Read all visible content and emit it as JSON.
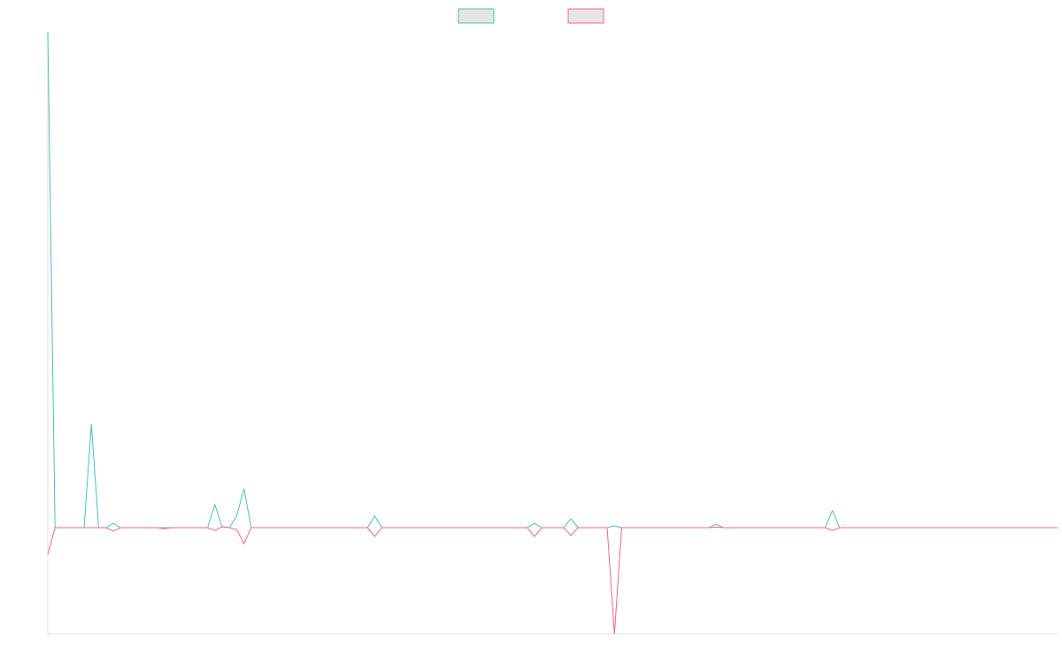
{
  "chart_data": {
    "type": "line",
    "series": [
      {
        "color": "#4bc0c0",
        "values": [
          14,
          0,
          0,
          0,
          0,
          0,
          2.93,
          0,
          0,
          0.12,
          0,
          0,
          0,
          0,
          0,
          0,
          0,
          0,
          0,
          0,
          0,
          0,
          0,
          0.65,
          0.02,
          0,
          0.33,
          1.1,
          0,
          0,
          0,
          0,
          0,
          0,
          0,
          0,
          0,
          0,
          0,
          0,
          0,
          0,
          0,
          0,
          0,
          0.33,
          0,
          0,
          0,
          0,
          0,
          0,
          0,
          0,
          0,
          0,
          0,
          0,
          0,
          0,
          0,
          0,
          0,
          0,
          0,
          0,
          0,
          0.12,
          0,
          0,
          0,
          0,
          0.25,
          0,
          0,
          0,
          0,
          0,
          0.05,
          0,
          0,
          0,
          0,
          0,
          0,
          0,
          0,
          0,
          0,
          0,
          0,
          0,
          0.1,
          0,
          0,
          0,
          0,
          0,
          0,
          0,
          0,
          0,
          0,
          0,
          0,
          0,
          0,
          0,
          0.48,
          0,
          0,
          0,
          0,
          0,
          0,
          0,
          0,
          0,
          0,
          0,
          0,
          0,
          0,
          0,
          0,
          0,
          0,
          0,
          0,
          0,
          0,
          0,
          0,
          0,
          0,
          0,
          0,
          0,
          0,
          0
        ]
      },
      {
        "color": "#ff6384",
        "values": [
          -0.75,
          0,
          0,
          0,
          0,
          0,
          0,
          0,
          0,
          -0.1,
          0,
          0,
          0,
          0,
          0,
          0,
          -0.03,
          0,
          0,
          0,
          0,
          0,
          0,
          -0.08,
          0.03,
          0,
          -0.05,
          -0.45,
          0,
          0,
          0,
          0,
          0,
          0,
          0,
          0,
          0,
          0,
          0,
          0,
          0,
          0,
          0,
          0,
          0,
          -0.25,
          0,
          0,
          0,
          0,
          0,
          0,
          0,
          0,
          0,
          0,
          0,
          0,
          0,
          0,
          0,
          0,
          0,
          0,
          0,
          0,
          0,
          -0.25,
          0,
          0,
          0,
          0,
          -0.22,
          0,
          0,
          0,
          0,
          0,
          -3,
          0,
          0,
          0,
          0,
          0,
          0,
          0,
          0,
          0,
          0,
          0,
          0,
          0,
          0.02,
          0,
          0,
          0,
          0,
          0,
          0,
          0,
          0,
          0,
          0,
          0,
          0,
          0,
          0,
          0,
          -0.08,
          0,
          0,
          0,
          0,
          0,
          0,
          0,
          0,
          0,
          0,
          0,
          0,
          0,
          0,
          0,
          0,
          0,
          0,
          0,
          0,
          0,
          0,
          0,
          0,
          0,
          0,
          0,
          0,
          0,
          0,
          0
        ]
      }
    ],
    "ylim": [
      -3,
      14
    ]
  }
}
